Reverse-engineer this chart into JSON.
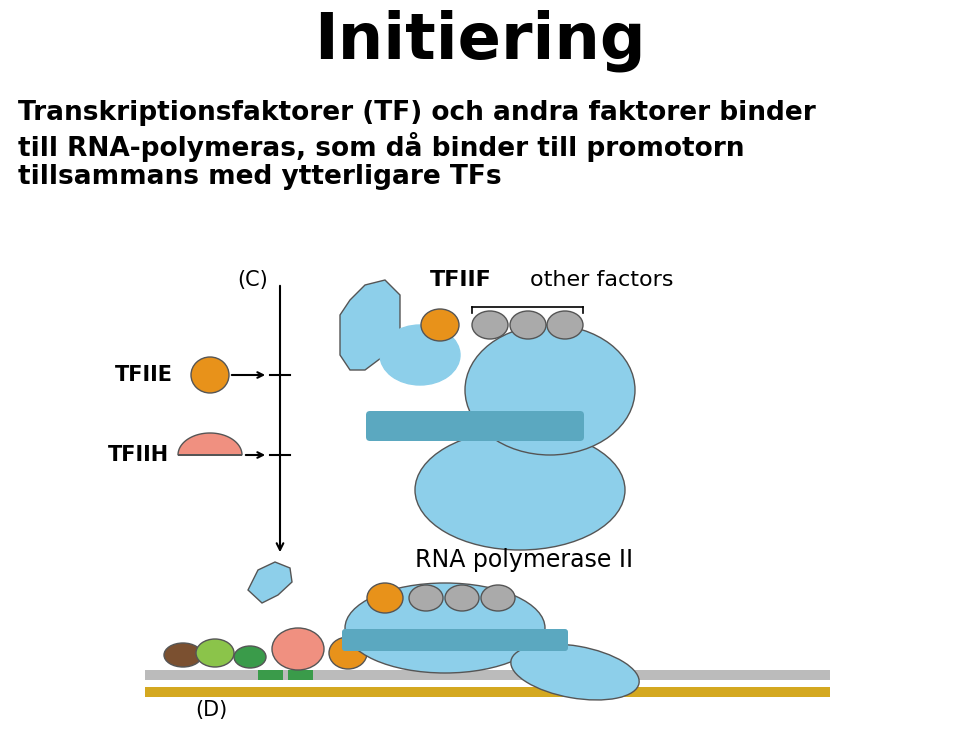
{
  "title": "Initiering",
  "title_fontsize": 46,
  "title_fontweight": "bold",
  "body_text_line1": "Transkriptionsfaktorer (TF) och andra faktorer binder",
  "body_text_line2": "till RNA-polymeras, som då binder till promotorn",
  "body_text_line3": "tillsammans med ytterligare TFs",
  "body_fontsize": 19,
  "body_fontweight": "bold",
  "bg_color": "#ffffff",
  "text_color": "#000000",
  "diagram_label_C": "(C)",
  "diagram_label_D": "(D)",
  "diagram_label_TFIIF": "TFIIF",
  "diagram_label_other": "other factors",
  "diagram_label_TFIIE": "TFIIE",
  "diagram_label_TFIIH": "TFIIH",
  "diagram_label_RNA_pol": "RNA polymerase II",
  "light_blue": "#8DCFEA",
  "medium_blue": "#6AB8D8",
  "teal_blue": "#5BA8C0",
  "orange": "#E8921A",
  "salmon": "#F09080",
  "gray": "#AAAAAA",
  "green_light": "#8BC44A",
  "green_dark": "#3A9B4A",
  "brown": "#7B5030",
  "yellow_gold": "#D4A820",
  "light_gray": "#BBBBBB",
  "outline": "#555555"
}
